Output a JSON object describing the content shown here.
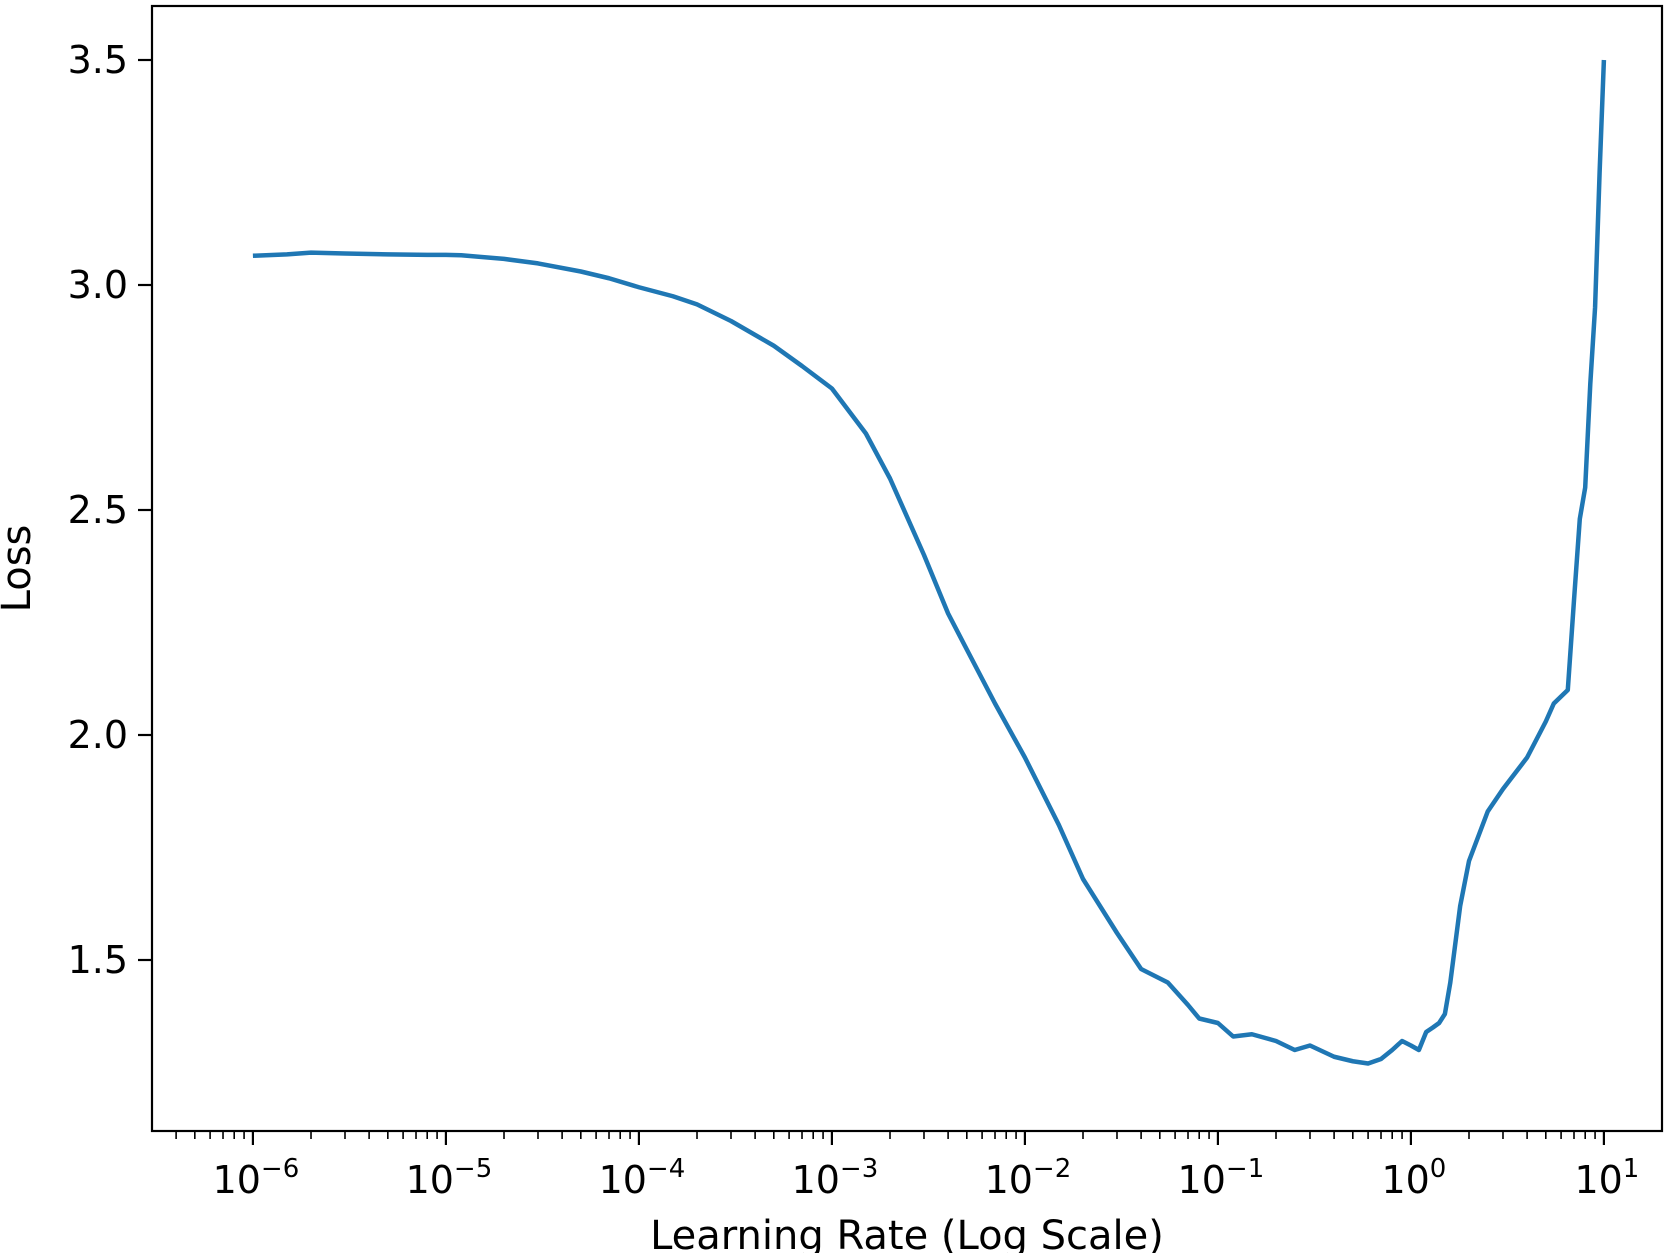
{
  "chart_data": {
    "type": "line",
    "xlabel": "Learning Rate (Log Scale)",
    "ylabel": "Loss",
    "x_scale": "log",
    "xlim": [
      3e-07,
      20
    ],
    "ylim": [
      1.12,
      3.62
    ],
    "grid": false,
    "legend": "none",
    "x_ticks": [
      {
        "base": "10",
        "exp": "−6",
        "value": 1e-06
      },
      {
        "base": "10",
        "exp": "−5",
        "value": 1e-05
      },
      {
        "base": "10",
        "exp": "−4",
        "value": 0.0001
      },
      {
        "base": "10",
        "exp": "−3",
        "value": 0.001
      },
      {
        "base": "10",
        "exp": "−2",
        "value": 0.01
      },
      {
        "base": "10",
        "exp": "−1",
        "value": 0.1
      },
      {
        "base": "10",
        "exp": "0",
        "value": 1
      },
      {
        "base": "10",
        "exp": "1",
        "value": 10
      }
    ],
    "y_ticks": [
      {
        "label": "1.5",
        "value": 1.5
      },
      {
        "label": "2.0",
        "value": 2.0
      },
      {
        "label": "2.5",
        "value": 2.5
      },
      {
        "label": "3.0",
        "value": 3.0
      },
      {
        "label": "3.5",
        "value": 3.5
      }
    ],
    "series": [
      {
        "color": "#1f77b4",
        "x": [
          1e-06,
          1.5e-06,
          2e-06,
          3e-06,
          5e-06,
          8e-06,
          1e-05,
          1.2e-05,
          2e-05,
          3e-05,
          5e-05,
          7e-05,
          0.0001,
          0.00015,
          0.0002,
          0.0003,
          0.0005,
          0.0007,
          0.001,
          0.0015,
          0.002,
          0.003,
          0.004,
          0.005,
          0.007,
          0.01,
          0.015,
          0.02,
          0.03,
          0.04,
          0.055,
          0.07,
          0.08,
          0.1,
          0.12,
          0.15,
          0.2,
          0.25,
          0.3,
          0.4,
          0.5,
          0.6,
          0.7,
          0.8,
          0.9,
          1.0,
          1.1,
          1.2,
          1.3,
          1.4,
          1.5,
          1.6,
          1.8,
          2.0,
          2.5,
          3.0,
          4.0,
          5.0,
          5.5,
          6.5,
          7.0,
          7.5,
          8.0,
          8.5,
          9.0,
          9.5,
          10.0
        ],
        "y": [
          3.065,
          3.068,
          3.072,
          3.07,
          3.068,
          3.067,
          3.067,
          3.066,
          3.058,
          3.048,
          3.03,
          3.015,
          2.995,
          2.975,
          2.957,
          2.92,
          2.865,
          2.82,
          2.77,
          2.67,
          2.57,
          2.4,
          2.27,
          2.19,
          2.07,
          1.95,
          1.8,
          1.68,
          1.56,
          1.48,
          1.45,
          1.4,
          1.37,
          1.36,
          1.33,
          1.335,
          1.32,
          1.3,
          1.31,
          1.285,
          1.275,
          1.27,
          1.28,
          1.3,
          1.32,
          1.31,
          1.3,
          1.34,
          1.35,
          1.36,
          1.38,
          1.45,
          1.62,
          1.72,
          1.83,
          1.88,
          1.95,
          2.03,
          2.07,
          2.1,
          2.3,
          2.48,
          2.55,
          2.78,
          2.95,
          3.25,
          3.5
        ]
      }
    ]
  }
}
